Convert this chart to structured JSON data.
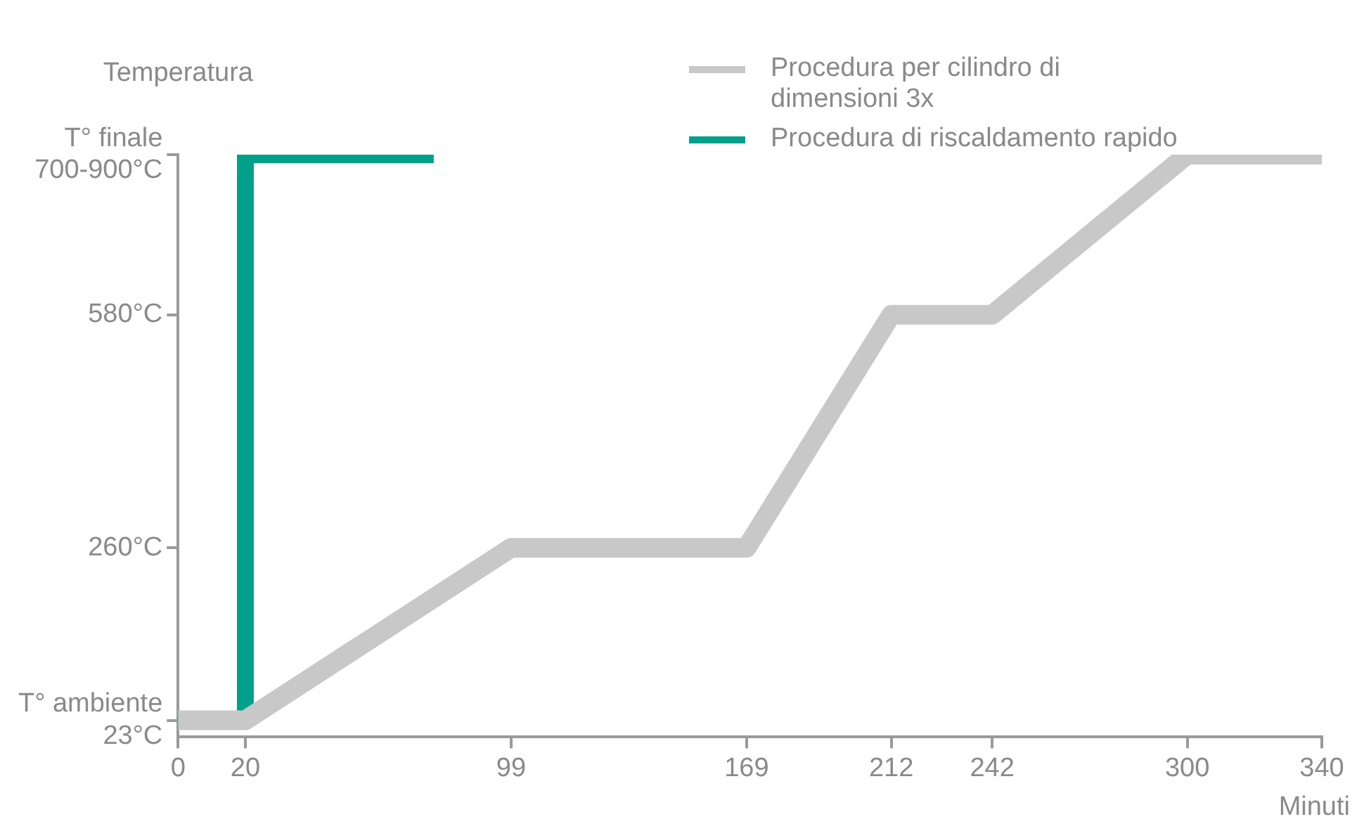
{
  "chart_data": {
    "type": "line",
    "xlabel": "Minuti",
    "ylabel": "Temperatura",
    "x": [
      0,
      20,
      99,
      169,
      212,
      242,
      300,
      340
    ],
    "xlim": [
      0,
      340
    ],
    "xticks": [
      0,
      20,
      99,
      169,
      212,
      242,
      300,
      340
    ],
    "ylim": [
      0,
      800
    ],
    "yticks": [
      {
        "value": 23,
        "label": "T° ambiente\n23°C"
      },
      {
        "value": 260,
        "label": "260°C"
      },
      {
        "value": 580,
        "label": "580°C"
      },
      {
        "value": 800,
        "label": "T° finale\n700-900°C"
      }
    ],
    "series": [
      {
        "name": "Procedura per cilindro di dimensioni 3x",
        "color": "#c8c8c8",
        "values": [
          23,
          23,
          260,
          260,
          580,
          580,
          800,
          800
        ]
      },
      {
        "name": "Procedura di riscaldamento rapido",
        "color": "#00a08a",
        "x": [
          0,
          20,
          20,
          76
        ],
        "values": [
          23,
          23,
          800,
          800
        ]
      }
    ],
    "grid": false,
    "legend": "top right",
    "marker": "none",
    "line_style": "solid"
  }
}
